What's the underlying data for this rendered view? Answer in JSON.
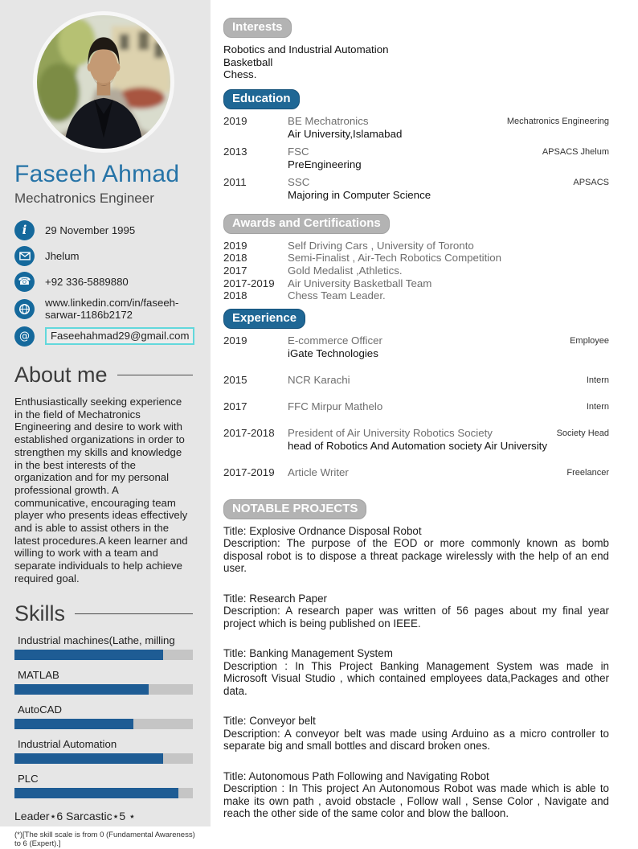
{
  "colors": {
    "accent_blue": "#1f6795",
    "name_blue": "#2573a7",
    "icon_blue": "#15699c",
    "pill_gray": "#b3b3b3",
    "sidebar_bg": "#e6e6e6",
    "skill_fill": "#1e5c94",
    "skill_track": "#c5c5c5",
    "email_border": "#62d8dc"
  },
  "sidebar": {
    "name": "Faseeh Ahmad",
    "title": "Mechatronics Engineer",
    "contact": [
      {
        "icon": "info-icon",
        "text": "29 November 1995"
      },
      {
        "icon": "mail-icon",
        "text": "Jhelum"
      },
      {
        "icon": "phone-icon",
        "text": "+92 336-5889880"
      },
      {
        "icon": "globe-icon",
        "text": "www.linkedin.com/in/faseeh-sarwar-1186b2172"
      },
      {
        "icon": "at-icon",
        "text": "Faseehahmad29@gmail.com"
      }
    ],
    "about": {
      "heading": "About me",
      "text": "Enthusiastically seeking experience in the field of Mechatronics Engineering and desire to work with established organizations in order to strengthen my skills and knowledge in the best interests of the organization and for my personal professional growth. A communicative, encouraging team player who presents ideas effectively and is able to assist others in the latest procedures.A keen learner and willing to work with a team and separate individuals to help achieve required goal."
    },
    "skills": {
      "heading": "Skills",
      "scale_max": 6,
      "items": [
        {
          "label": "Industrial machines(Lathe, milling",
          "value": 5
        },
        {
          "label": "MATLAB",
          "value": 4.5
        },
        {
          "label": "AutoCAD",
          "value": 4
        },
        {
          "label": "Industrial Automation",
          "value": 5
        },
        {
          "label": "PLC",
          "value": 5.5
        }
      ],
      "tags_line": "Leader⋆6 Sarcastic⋆5 ⋆",
      "footnote": "(*)[The skill scale is from 0 (Fundamental Awareness) to 6 (Expert).]"
    }
  },
  "main": {
    "interests": {
      "heading": "Interests",
      "items": [
        "Robotics and Industrial Automation",
        "Basketball",
        "Chess."
      ]
    },
    "education": {
      "heading": "Education",
      "rows": [
        {
          "year": "2019",
          "degree": "BE Mechatronics",
          "institution": "Air University,Islamabad",
          "note": "Mechatronics Engineering"
        },
        {
          "year": "2013",
          "degree": "FSC",
          "institution": "PreEngineering",
          "note": "APSACS Jhelum"
        },
        {
          "year": "2011",
          "degree": "SSC",
          "institution": "Majoring in Computer Science",
          "note": "APSACS"
        }
      ]
    },
    "awards": {
      "heading": "Awards and Certifications",
      "rows": [
        {
          "year": "2019",
          "text": "Self Driving Cars , University of Toronto"
        },
        {
          "year": "2018",
          "text": "Semi-Finalist , Air-Tech Robotics Competition"
        },
        {
          "year": "2017",
          "text": "Gold Medalist ,Athletics."
        },
        {
          "year": "2017-2019",
          "text": "Air University Basketball Team"
        },
        {
          "year": "2018",
          "text": "Chess Team Leader."
        }
      ]
    },
    "experience": {
      "heading": "Experience",
      "rows": [
        {
          "year": "2019",
          "role": "E-commerce Officer",
          "org": "iGate Technologies",
          "note": "Employee"
        },
        {
          "year": "2015",
          "role": "NCR Karachi",
          "org": "",
          "note": "Intern"
        },
        {
          "year": "2017",
          "role": "FFC Mirpur Mathelo",
          "org": "",
          "note": "Intern"
        },
        {
          "year": "2017-2018",
          "role": "President of Air University Robotics Society",
          "org": "head of Robotics And Automation society Air University",
          "note": "Society Head"
        },
        {
          "year": "2017-2019",
          "role": "Article Writer",
          "org": "",
          "note": "Freelancer"
        }
      ]
    },
    "projects": {
      "heading": "NOTABLE PROJECTS",
      "items": [
        {
          "title": "Title: Explosive Ordnance Disposal Robot",
          "description": "Description: The purpose of the EOD or more commonly known as bomb disposal robot is to dispose a threat package wirelessly with the help of an end user."
        },
        {
          "title": "Title: Research Paper",
          "description": "Description: A research paper was written of 56 pages about my final year project which is being published on IEEE."
        },
        {
          "title": "Title: Banking Management System",
          "description": "Description : In This Project Banking Management System was made in Microsoft Visual Studio , which contained employees data,Packages and other data."
        },
        {
          "title": "Title: Conveyor belt",
          "description": "Description: A conveyor belt was made using Arduino as a micro controller to separate big and small bottles and discard broken ones."
        },
        {
          "title": "Title: Autonomous Path Following and Navigating Robot",
          "description": "Description : In This project An Autonomous Robot was made which is able to make its own path , avoid obstacle , Follow wall , Sense Color , Navigate and reach the other side of the same color and blow the balloon."
        }
      ]
    }
  }
}
